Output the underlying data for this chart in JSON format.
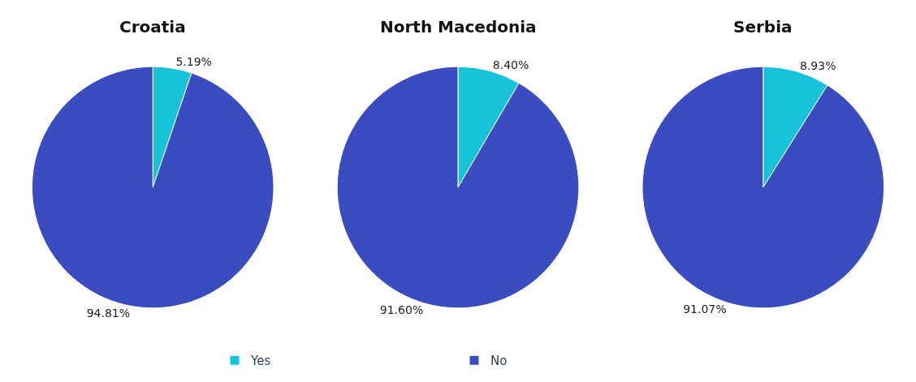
{
  "chart_data": [
    {
      "type": "pie",
      "title": "Croatia",
      "categories": [
        "Yes",
        "No"
      ],
      "values": [
        5.19,
        94.81
      ],
      "value_labels": [
        "5.19%",
        "94.81%"
      ],
      "colors": [
        "#17c3da",
        "#3b4cc0"
      ],
      "legend": "bottom"
    },
    {
      "type": "pie",
      "title": "North Macedonia",
      "categories": [
        null,
        null
      ],
      "values": [
        8.4,
        91.6
      ],
      "value_labels": [
        "8.40%",
        "91.60%"
      ],
      "colors": [
        "#17c3da",
        "#3b4cc0"
      ]
    },
    {
      "type": "pie",
      "title": "Serbia",
      "categories": [
        null,
        null
      ],
      "values": [
        8.93,
        91.07
      ],
      "value_labels": [
        "8.93%",
        "91.07%"
      ],
      "colors": [
        "#17c3da",
        "#3b4cc0"
      ]
    }
  ]
}
